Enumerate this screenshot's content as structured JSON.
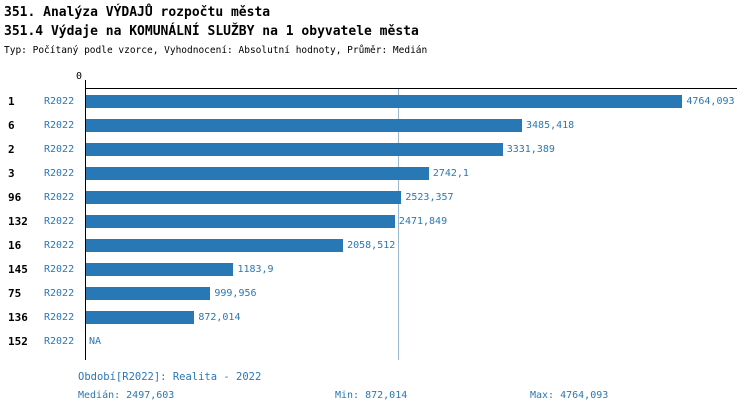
{
  "header": {
    "title1": "351. Analýza VÝDAJŮ rozpočtu města",
    "title2": "351.4 Výdaje na KOMUNÁLNÍ SLUŽBY na 1 obyvatele města",
    "subtitle": "Typ: Počítaný podle vzorce, Vyhodnocení: Absolutní hodnoty, Průměr: Medián"
  },
  "chart_data": {
    "type": "bar",
    "orientation": "horizontal",
    "origin_tick_label": "0",
    "xlim": [
      0,
      5200
    ],
    "median": 2497.603,
    "bar_color": "#2878b5",
    "series_label": "R2022",
    "rows": [
      {
        "rank": "1",
        "period": "R2022",
        "value": 4764.093,
        "value_label": "4764,093"
      },
      {
        "rank": "6",
        "period": "R2022",
        "value": 3485.418,
        "value_label": "3485,418"
      },
      {
        "rank": "2",
        "period": "R2022",
        "value": 3331.389,
        "value_label": "3331,389"
      },
      {
        "rank": "3",
        "period": "R2022",
        "value": 2742.1,
        "value_label": "2742,1"
      },
      {
        "rank": "96",
        "period": "R2022",
        "value": 2523.357,
        "value_label": "2523,357"
      },
      {
        "rank": "132",
        "period": "R2022",
        "value": 2471.849,
        "value_label": "2471,849"
      },
      {
        "rank": "16",
        "period": "R2022",
        "value": 2058.512,
        "value_label": "2058,512"
      },
      {
        "rank": "145",
        "period": "R2022",
        "value": 1183.9,
        "value_label": "1183,9"
      },
      {
        "rank": "75",
        "period": "R2022",
        "value": 999.956,
        "value_label": "999,956"
      },
      {
        "rank": "136",
        "period": "R2022",
        "value": 872.014,
        "value_label": "872,014"
      },
      {
        "rank": "152",
        "period": "R2022",
        "value": null,
        "value_label": "NA"
      }
    ]
  },
  "footer": {
    "period_line": "Období[R2022]: Realita - 2022",
    "median_text": "Medián: 2497,603",
    "min_text": "Min: 872,014",
    "max_text": "Max: 4764,093"
  }
}
